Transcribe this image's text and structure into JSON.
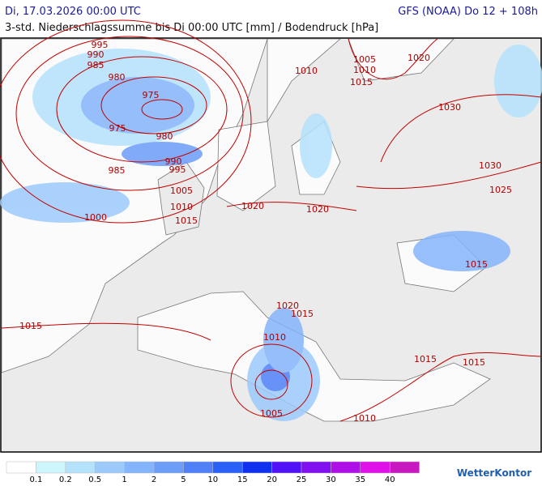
{
  "header": {
    "date": "Di, 17.03.2026 00:00 UTC",
    "model": "GFS (NOAA) Do 12 + 108h",
    "subtitle": "3-std. Niederschlagssumme bis Di 00:00 UTC [mm] / Bodendruck [hPa]"
  },
  "map": {
    "isobar_labels": [
      "995",
      "990",
      "985",
      "980",
      "975",
      "975",
      "980",
      "985",
      "990",
      "995",
      "1005",
      "1010",
      "1015",
      "1000",
      "1005",
      "1010",
      "1015",
      "1010",
      "1020",
      "1030",
      "1030",
      "1025",
      "1020",
      "1020",
      "1015",
      "1020",
      "1015",
      "1015",
      "1010",
      "1015",
      "1015",
      "1005",
      "1010"
    ]
  },
  "legend": {
    "items": [
      {
        "color": "#ffffff"
      },
      {
        "label": 0.1,
        "color": "#ccf6fb"
      },
      {
        "label": 0.2,
        "color": "#b4e2fb"
      },
      {
        "label": 0.5,
        "color": "#9ccafb"
      },
      {
        "label": 1,
        "color": "#84b4fb"
      },
      {
        "label": 2,
        "color": "#6c9ef8"
      },
      {
        "label": 5,
        "color": "#5080f8"
      },
      {
        "label": 10,
        "color": "#2860f8"
      },
      {
        "label": 15,
        "color": "#1030f0"
      },
      {
        "label": 20,
        "color": "#5010f8"
      },
      {
        "label": 25,
        "color": "#8010f0"
      },
      {
        "label": 30,
        "color": "#b010e8"
      },
      {
        "label": 35,
        "color": "#e010e8"
      },
      {
        "label": 40,
        "color": "#c818c0"
      }
    ],
    "brand": "WetterKontor"
  }
}
